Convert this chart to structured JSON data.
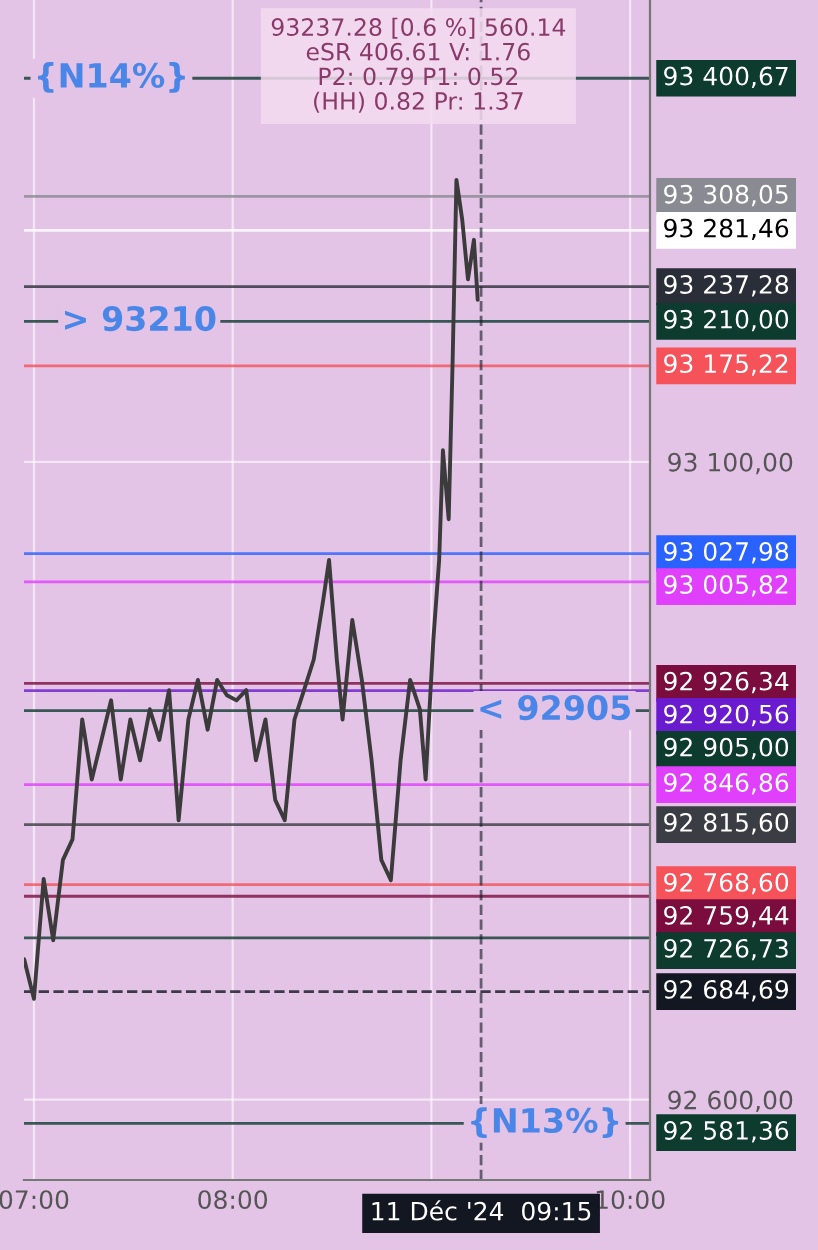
{
  "chart_data": {
    "type": "line",
    "x": [
      6.951,
      7.0,
      7.049,
      7.097,
      7.146,
      7.194,
      7.243,
      7.291,
      7.34,
      7.388,
      7.437,
      7.485,
      7.534,
      7.583,
      7.631,
      7.68,
      7.728,
      7.777,
      7.825,
      7.874,
      7.922,
      7.971,
      8.019,
      8.068,
      8.117,
      8.165,
      8.214,
      8.262,
      8.311,
      8.359,
      8.408,
      8.456,
      8.485,
      8.524,
      8.553,
      8.602,
      8.65,
      8.699,
      8.748,
      8.796,
      8.845,
      8.893,
      8.942,
      8.971,
      9.01,
      9.039,
      9.058,
      9.087,
      9.107,
      9.126,
      9.155,
      9.184,
      9.214,
      9.233
    ],
    "series": [
      {
        "color": "#3b3b3b",
        "values": [
          92710,
          92679,
          92773,
          92725,
          92788,
          92804,
          92898,
          92851,
          92882,
          92913,
          92851,
          92898,
          92866,
          92906,
          92882,
          92921,
          92819,
          92898,
          92929,
          92890,
          92929,
          92917,
          92913,
          92921,
          92866,
          92898,
          92835,
          92819,
          92898,
          92921,
          92945,
          92992,
          93023,
          92945,
          92898,
          92976,
          92929,
          92866,
          92788,
          92772,
          92866,
          92929,
          92906,
          92851,
          92961,
          93023,
          93109,
          93055,
          93180,
          93321,
          93290,
          93243,
          93274,
          93227
        ]
      }
    ],
    "xlim": [
      6.95,
      10.1
    ],
    "xticks": [
      {
        "value": 7,
        "label": "07:00"
      },
      {
        "value": 8,
        "label": "08:00"
      },
      {
        "value": 9,
        "label": null
      },
      {
        "value": 10,
        "label": "10:00"
      }
    ],
    "ylim": [
      92537,
      93462
    ],
    "yticks": [
      {
        "value": 93100,
        "label": "93 100,00"
      },
      {
        "value": 92600,
        "label": "92 600,00"
      }
    ],
    "grid": true,
    "ref_lines": [
      {
        "axis": "y",
        "value": 93400.67,
        "label": "93 400,67",
        "color": "#0d3b2e"
      },
      {
        "axis": "y",
        "value": 93308.05,
        "label": "93 308,05",
        "color": "#8a8a92"
      },
      {
        "axis": "y",
        "value": 93281.46,
        "label": "93 281,46",
        "color": "#ffffff"
      },
      {
        "axis": "y",
        "value": 93237.28,
        "label": "93 237,28",
        "color": "#2a2e39"
      },
      {
        "axis": "y",
        "value": 93210.0,
        "label": "93 210,00",
        "color": "#0d3b2e"
      },
      {
        "axis": "y",
        "value": 93175.22,
        "label": "93 175,22",
        "color": "#f5525a"
      },
      {
        "axis": "y",
        "value": 93027.98,
        "label": "93 027,98",
        "color": "#2962ff"
      },
      {
        "axis": "y",
        "value": 93005.82,
        "label": "93 005,82",
        "color": "#e040fb"
      },
      {
        "axis": "y",
        "value": 92926.34,
        "label": "92 926,34",
        "color": "#7b0d3e"
      },
      {
        "axis": "y",
        "value": 92920.56,
        "label": "92 920,56",
        "color": "#6a1bd0"
      },
      {
        "axis": "y",
        "value": 92905.0,
        "label": "92 905,00",
        "color": "#0d3b2e"
      },
      {
        "axis": "y",
        "value": 92846.86,
        "label": "92 846,86",
        "color": "#e040fb"
      },
      {
        "axis": "y",
        "value": 92815.6,
        "label": "92 815,60",
        "color": "#3a3d44"
      },
      {
        "axis": "y",
        "value": 92768.6,
        "label": "92 768,60",
        "color": "#f5525a"
      },
      {
        "axis": "y",
        "value": 92759.44,
        "label": "92 759,44",
        "color": "#7b0d3e"
      },
      {
        "axis": "y",
        "value": 92726.73,
        "label": "92 726,73",
        "color": "#0d3b2e"
      },
      {
        "axis": "y",
        "value": 92684.69,
        "label": "92 684,69",
        "color": "#131722",
        "line_style": "dashed"
      },
      {
        "axis": "y",
        "value": 92581.36,
        "label": "92 581,36",
        "color": "#0d3b2e"
      },
      {
        "axis": "x",
        "value": 9.25,
        "label": "11 Déc '24  09:15",
        "color": "#131722",
        "line_style": "dashed"
      }
    ],
    "annotations": [
      "93237.28 [0.6 %] 560.14\neSR 406.61 V: 1.76\nP2: 0.79 P1: 0.52\n(HH) 0.82 Pr: 1.37",
      {
        "text": "{N14%}",
        "x": 7.39,
        "y": 93400.67
      },
      {
        "text": "> 93210",
        "x": 7.53,
        "y": 93210.0
      },
      {
        "text": "< 92905",
        "x": 9.62,
        "y": 92905.0
      },
      {
        "text": "{N13%}",
        "x": 9.57,
        "y": 92581.36
      }
    ]
  }
}
